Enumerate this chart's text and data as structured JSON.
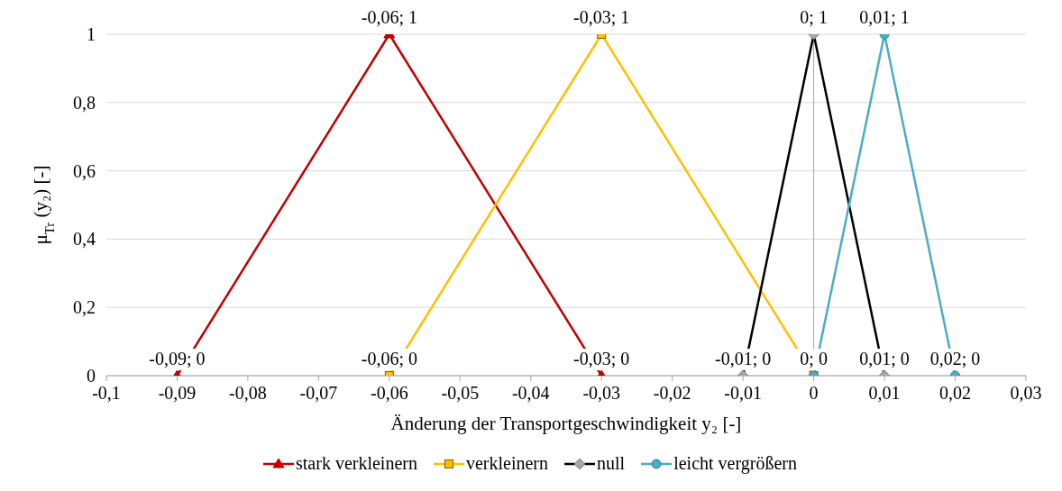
{
  "chart_data": {
    "type": "line",
    "xlabel": "Änderung der Transportgeschwindigkeit y₂ [-]",
    "ylabel": "μ$_{Tr}$ (y₂) [-]",
    "xlim": [
      -0.1,
      0.03
    ],
    "xticks": [
      {
        "value": -0.1,
        "label": "-0,1"
      },
      {
        "value": -0.09,
        "label": "-0,09"
      },
      {
        "value": -0.08,
        "label": "-0,08"
      },
      {
        "value": -0.07,
        "label": "-0,07"
      },
      {
        "value": -0.06,
        "label": "-0,06"
      },
      {
        "value": -0.05,
        "label": "-0,05"
      },
      {
        "value": -0.04,
        "label": "-0,04"
      },
      {
        "value": -0.03,
        "label": "-0,03"
      },
      {
        "value": -0.02,
        "label": "-0,02"
      },
      {
        "value": -0.01,
        "label": "-0,01"
      },
      {
        "value": 0,
        "label": "0"
      },
      {
        "value": 0.01,
        "label": "0,01"
      },
      {
        "value": 0.02,
        "label": "0,02"
      },
      {
        "value": 0.03,
        "label": "0,03"
      }
    ],
    "ylim": [
      0,
      1
    ],
    "yticks": [
      0,
      {
        "value": 0.2,
        "label": "0,2"
      },
      {
        "value": 0.4,
        "label": "0,4"
      },
      {
        "value": 0.6,
        "label": "0,6"
      },
      {
        "value": 0.8,
        "label": "0,8"
      },
      1
    ],
    "grid": "y",
    "legend": "bottom",
    "ref_lines": [
      {
        "axis": "x",
        "value": 0,
        "color": "#a6a6a6"
      }
    ],
    "series": [
      {
        "name": "stark verkleinern",
        "color": "#c00000",
        "marker": "triangle",
        "x": [
          -0.09,
          -0.06,
          -0.03
        ],
        "values": [
          0,
          1,
          0
        ],
        "value_labels": [
          "-0,09; 0",
          "-0,06; 1",
          "-0,03; 0"
        ]
      },
      {
        "name": "verkleinern",
        "color": "#ffc000",
        "marker": "square",
        "x": [
          -0.06,
          -0.03,
          0
        ],
        "values": [
          0,
          1,
          0
        ],
        "value_labels": [
          "-0,06; 0",
          "-0,03; 1",
          null
        ]
      },
      {
        "name": "null",
        "color": "#000000",
        "marker": "diamond",
        "x": [
          -0.01,
          0,
          0.01
        ],
        "values": [
          0,
          1,
          0
        ],
        "value_labels": [
          "-0,01; 0",
          "0; 1",
          "0,01; 0"
        ]
      },
      {
        "name": "leicht vergrößern",
        "color": "#4bacc6",
        "marker": "circle",
        "x": [
          0,
          0.01,
          0.02
        ],
        "values": [
          0,
          1,
          0
        ],
        "value_labels": [
          "0; 0",
          "0,01; 1",
          "0,02; 0"
        ]
      }
    ]
  }
}
